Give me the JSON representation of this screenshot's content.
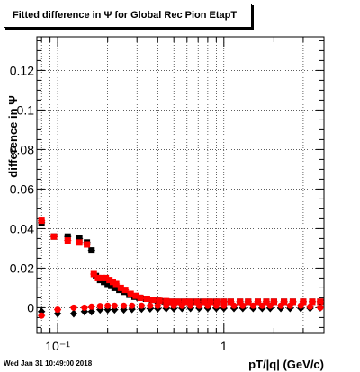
{
  "chart_data": {
    "type": "scatter",
    "title": "Fitted difference in  Ψ  for Global Rec Pion EtapT",
    "xlabel": "pT/|q| (GeV/c)",
    "ylabel": "difference in  Ψ",
    "xscale": "log",
    "xlim": [
      0.075,
      4.0
    ],
    "ylim": [
      -0.013,
      0.137
    ],
    "grid": true,
    "x_ticks": [
      {
        "v": 0.1,
        "label": "10⁻¹"
      },
      {
        "v": 1,
        "label": "1"
      }
    ],
    "y_ticks": [
      {
        "v": 0,
        "label": "0"
      },
      {
        "v": 0.02,
        "label": "0.02"
      },
      {
        "v": 0.04,
        "label": "0.04"
      },
      {
        "v": 0.06,
        "label": "0.06"
      },
      {
        "v": 0.08,
        "label": "0.08"
      },
      {
        "v": 0.1,
        "label": "0.1"
      },
      {
        "v": 0.12,
        "label": "0.12"
      }
    ],
    "series": [
      {
        "name": "",
        "color": "#000000",
        "marker": "square",
        "x": [
          0.08,
          0.095,
          0.115,
          0.135,
          0.15,
          0.16,
          0.17,
          0.18,
          0.19,
          0.2,
          0.21,
          0.22,
          0.235,
          0.25,
          0.27,
          0.29,
          0.31,
          0.34,
          0.37,
          0.4,
          0.44,
          0.48,
          0.52,
          0.57,
          0.62,
          0.68,
          0.75,
          0.82,
          0.9,
          1.0,
          1.1,
          1.25,
          1.4,
          1.6,
          1.8,
          2.0,
          2.3,
          2.6,
          3.0,
          3.4,
          3.8
        ],
        "y": [
          0.043,
          0.036,
          0.036,
          0.035,
          0.033,
          0.029,
          0.016,
          0.014,
          0.013,
          0.012,
          0.011,
          0.01,
          0.009,
          0.008,
          0.0065,
          0.0055,
          0.005,
          0.0045,
          0.004,
          0.0035,
          0.0032,
          0.003,
          0.003,
          0.003,
          0.003,
          0.003,
          0.003,
          0.003,
          0.003,
          0.003,
          0.003,
          0.003,
          0.003,
          0.003,
          0.003,
          0.003,
          0.003,
          0.003,
          0.003,
          0.003,
          0.003
        ]
      },
      {
        "name": "",
        "color": "#ff0000",
        "marker": "square",
        "x": [
          0.08,
          0.095,
          0.115,
          0.135,
          0.15,
          0.165,
          0.175,
          0.185,
          0.195,
          0.205,
          0.215,
          0.225,
          0.24,
          0.255,
          0.275,
          0.295,
          0.315,
          0.345,
          0.375,
          0.41,
          0.45,
          0.49,
          0.53,
          0.58,
          0.63,
          0.69,
          0.76,
          0.83,
          0.91,
          1.0,
          1.1,
          1.25,
          1.4,
          1.6,
          1.8,
          2.0,
          2.3,
          2.6,
          3.0,
          3.4,
          3.8
        ],
        "y": [
          0.044,
          0.036,
          0.034,
          0.033,
          0.032,
          0.017,
          0.015,
          0.015,
          0.015,
          0.014,
          0.013,
          0.012,
          0.01,
          0.009,
          0.007,
          0.006,
          0.005,
          0.0045,
          0.004,
          0.0035,
          0.0033,
          0.003,
          0.003,
          0.003,
          0.003,
          0.003,
          0.003,
          0.003,
          0.003,
          0.003,
          0.003,
          0.003,
          0.003,
          0.003,
          0.003,
          0.003,
          0.003,
          0.003,
          0.003,
          0.003,
          0.003
        ]
      },
      {
        "name": "",
        "color": "#000000",
        "marker": "diamond",
        "x": [
          0.08,
          0.1,
          0.125,
          0.145,
          0.16,
          0.18,
          0.2,
          0.22,
          0.25,
          0.28,
          0.32,
          0.36,
          0.4,
          0.45,
          0.5,
          0.56,
          0.63,
          0.71,
          0.8,
          0.9,
          1.0,
          1.15,
          1.3,
          1.5,
          1.7,
          1.9,
          2.2,
          2.5,
          2.9,
          3.3,
          3.8
        ],
        "y": [
          -0.002,
          -0.003,
          -0.003,
          -0.002,
          -0.002,
          -0.001,
          -0.001,
          -0.001,
          -0.001,
          -0.0008,
          -0.0006,
          -0.0005,
          -0.0005,
          -0.0004,
          -0.0004,
          -0.0003,
          -0.0003,
          -0.0003,
          -0.0003,
          -0.0003,
          -0.0003,
          -0.0003,
          -0.0003,
          -0.0003,
          -0.0003,
          -0.0003,
          -0.0003,
          -0.0003,
          -0.0003,
          -0.0003,
          0.0
        ]
      },
      {
        "name": "",
        "color": "#ff0000",
        "marker": "circle",
        "x": [
          0.08,
          0.1,
          0.125,
          0.145,
          0.16,
          0.18,
          0.2,
          0.22,
          0.25,
          0.28,
          0.32,
          0.36,
          0.4,
          0.45,
          0.5,
          0.56,
          0.63,
          0.71,
          0.8,
          0.9,
          1.0,
          1.15,
          1.3,
          1.5,
          1.7,
          1.9,
          2.2,
          2.5,
          2.9,
          3.3,
          3.8
        ],
        "y": [
          -0.004,
          -0.001,
          0.0,
          0.0,
          0.0005,
          0.0008,
          0.001,
          0.001,
          0.001,
          0.001,
          0.001,
          0.001,
          0.001,
          0.001,
          0.001,
          0.001,
          0.001,
          0.001,
          0.001,
          0.001,
          0.001,
          0.001,
          0.001,
          0.001,
          0.001,
          0.001,
          0.001,
          0.001,
          0.001,
          0.0005,
          0.0
        ]
      }
    ]
  },
  "footer": {
    "timestamp": "Wed Jan 31 10:49:00 2018"
  }
}
